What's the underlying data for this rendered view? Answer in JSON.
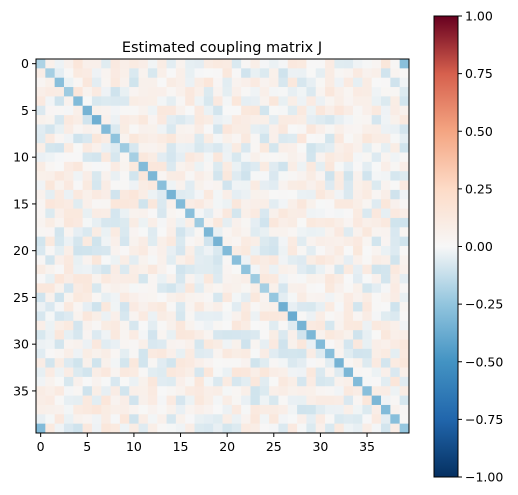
{
  "chart_data": [
    {
      "type": "heatmap",
      "title": "Estimated coupling matrix J",
      "xlabel": "",
      "ylabel": "",
      "rows": 40,
      "cols": 40,
      "x_ticks": [
        0,
        5,
        10,
        15,
        20,
        25,
        30,
        35
      ],
      "y_ticks": [
        0,
        5,
        10,
        15,
        20,
        25,
        30,
        35
      ],
      "x_tick_labels": [
        "0",
        "5",
        "10",
        "15",
        "20",
        "25",
        "30",
        "35"
      ],
      "y_tick_labels": [
        "0",
        "5",
        "10",
        "15",
        "20",
        "25",
        "30",
        "35"
      ],
      "colormap": "RdBu_r",
      "vmin": -1.0,
      "vmax": 1.0,
      "diagonal_values": [
        -0.18,
        -0.2,
        -0.28,
        -0.22,
        -0.3,
        -0.34,
        -0.36,
        -0.3,
        -0.26,
        -0.22,
        -0.2,
        -0.3,
        -0.32,
        -0.28,
        -0.34,
        -0.3,
        -0.28,
        -0.22,
        -0.32,
        -0.34,
        -0.3,
        -0.28,
        -0.26,
        -0.22,
        -0.2,
        -0.24,
        -0.36,
        -0.38,
        -0.34,
        -0.32,
        -0.3,
        -0.28,
        -0.34,
        -0.32,
        -0.3,
        -0.28,
        -0.32,
        -0.3,
        -0.28,
        -0.24
      ],
      "offdiagonal_range": [
        -0.1,
        0.15
      ],
      "notable_cells": [
        {
          "row": 0,
          "col": 39,
          "value": -0.28
        },
        {
          "row": 39,
          "col": 0,
          "value": -0.3
        }
      ],
      "grid": false,
      "colorbar": {
        "ticks": [
          1.0,
          0.75,
          0.5,
          0.25,
          0.0,
          -0.25,
          -0.5,
          -0.75,
          -1.0
        ],
        "tick_labels": [
          "1.00",
          "0.75",
          "0.50",
          "0.25",
          "0.00",
          "−0.25",
          "−0.50",
          "−0.75",
          "−1.00"
        ],
        "placement": "right"
      }
    }
  ]
}
